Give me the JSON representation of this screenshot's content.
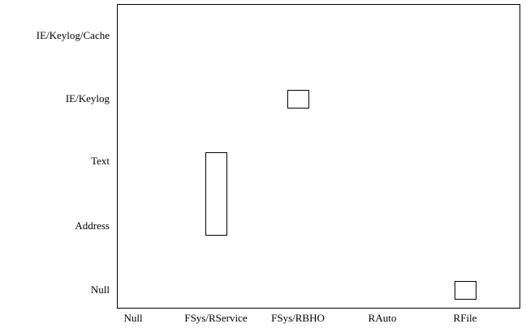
{
  "chart_data": {
    "type": "scatter",
    "title": "",
    "xlabel": "",
    "ylabel": "",
    "x_categories": [
      "Null",
      "FSys/RService",
      "FSys/RBHO",
      "RAuto",
      "RFile"
    ],
    "y_categories": [
      "Null",
      "Address",
      "Text",
      "IE/Keylog",
      "IE/Keylog/Cache"
    ],
    "grid": false,
    "legend": "none",
    "marks": [
      {
        "x": "FSys/RService",
        "y_from": "Address",
        "y_to": "Text"
      },
      {
        "x": "FSys/RBHO",
        "y_from": "IE/Keylog",
        "y_to": "IE/Keylog"
      },
      {
        "x": "RFile",
        "y_from": "Null",
        "y_to": "Null"
      }
    ],
    "colors": {
      "axis": "#000000",
      "box_stroke": "#000000",
      "box_fill": "#ffffff"
    }
  }
}
